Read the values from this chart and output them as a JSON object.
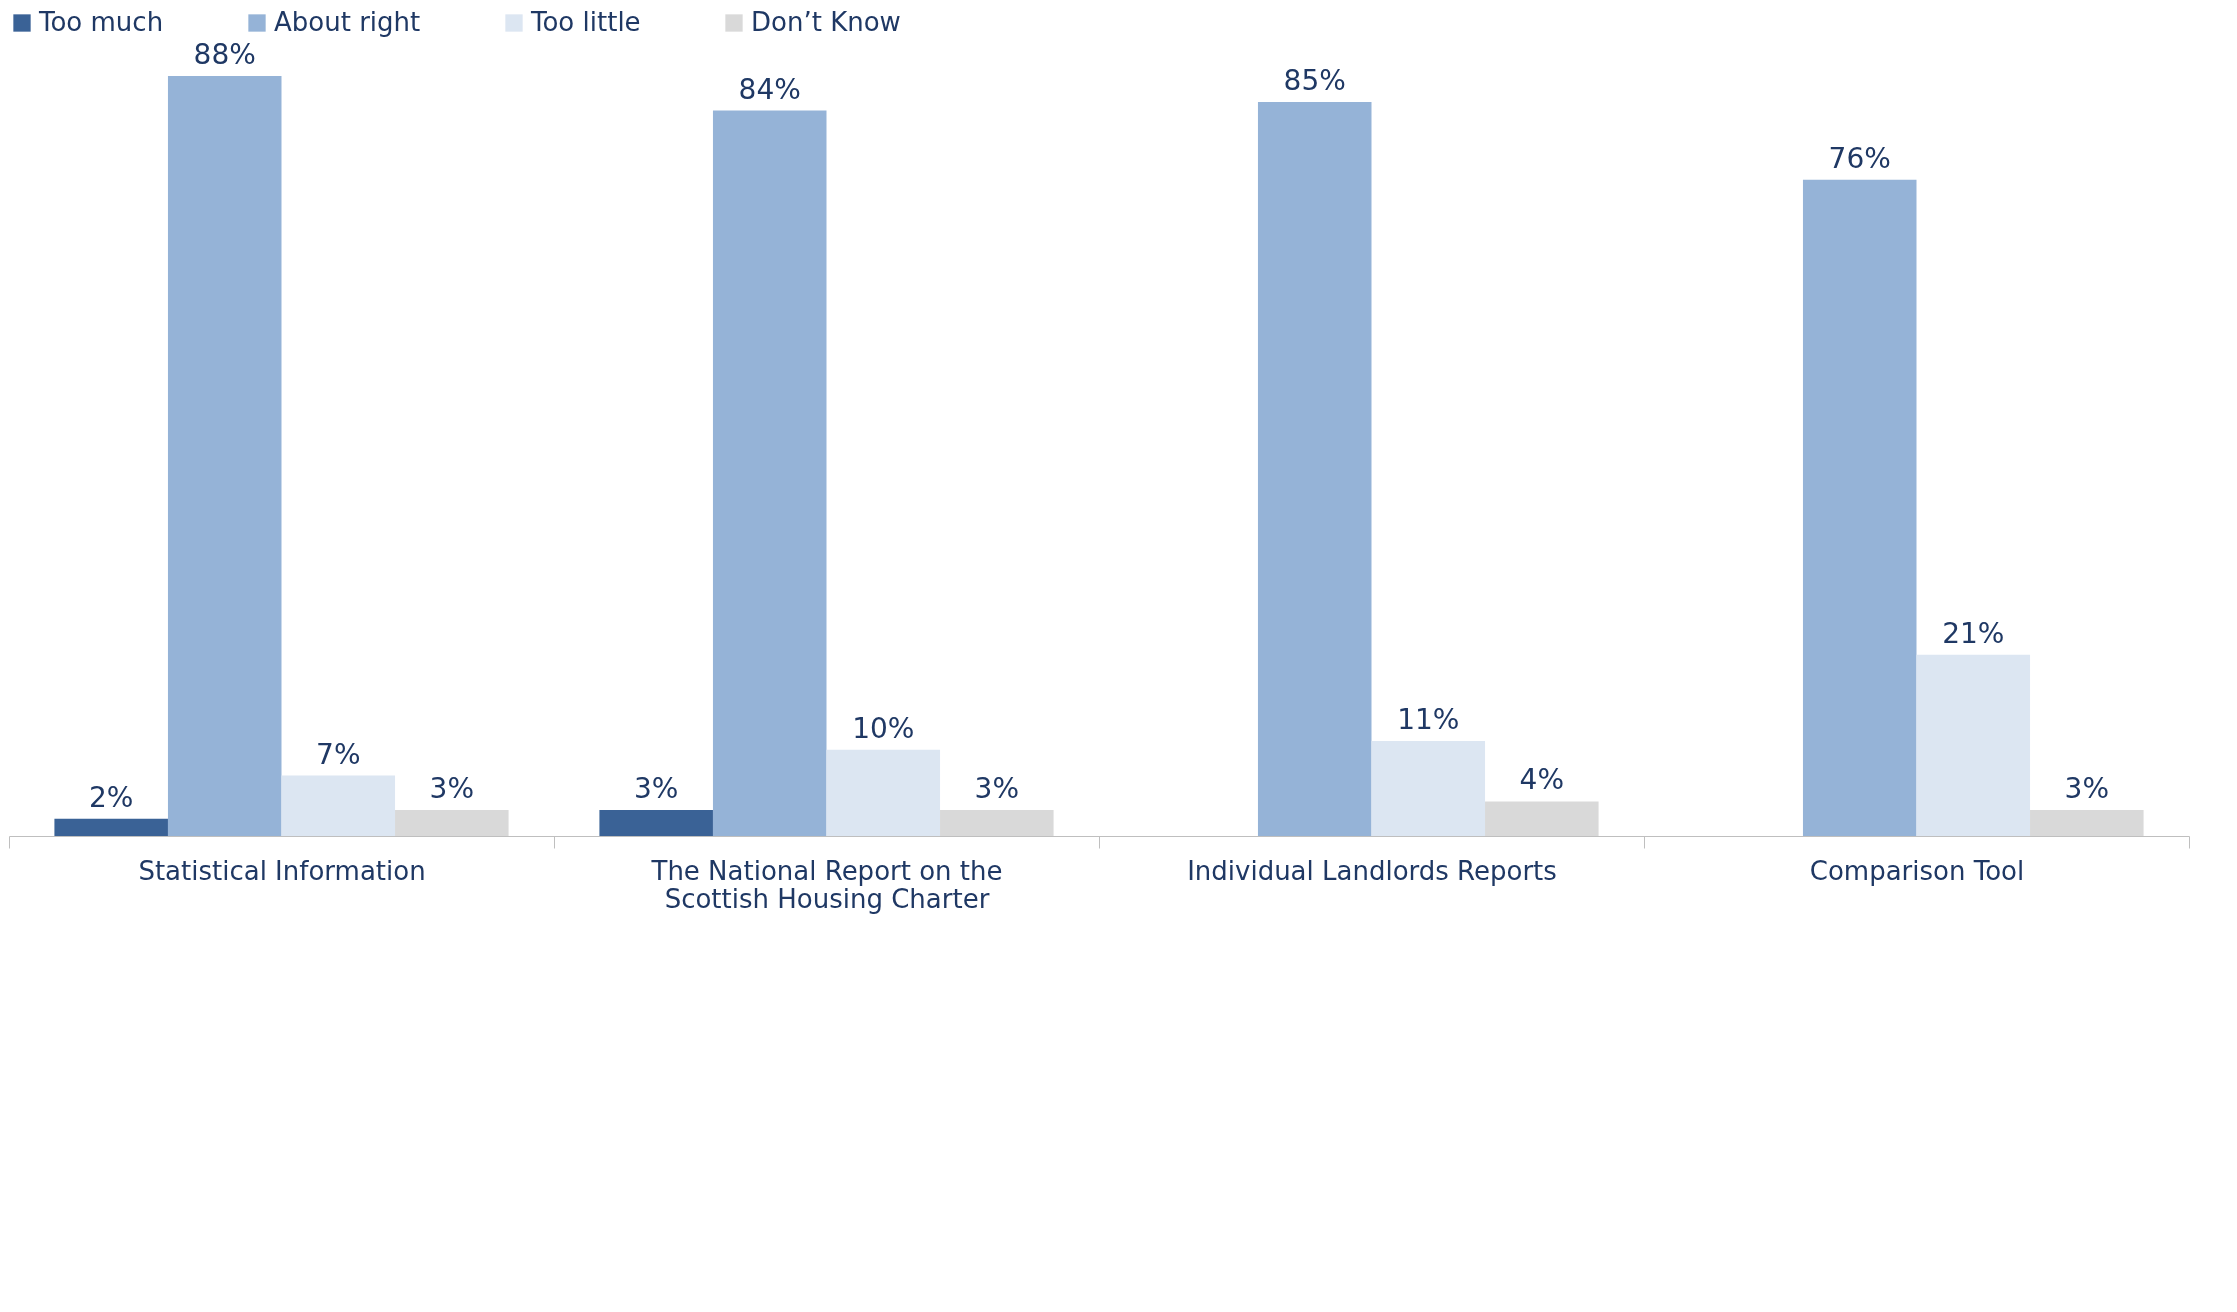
{
  "chart_data": {
    "type": "bar",
    "categories": [
      "Statistical Information",
      "The National Report on the Scottish Housing Charter",
      "Individual Landlords Reports",
      "Comparison Tool"
    ],
    "series": [
      {
        "name": "Too much",
        "color": "#3a6296",
        "values": [
          2,
          3,
          null,
          null
        ],
        "value_labels": [
          "2%",
          "3%",
          null,
          null
        ]
      },
      {
        "name": "About right",
        "color": "#95b3d7",
        "values": [
          88,
          84,
          85,
          76
        ],
        "value_labels": [
          "88%",
          "84%",
          "85%",
          "76%"
        ]
      },
      {
        "name": "Too little",
        "color": "#dce6f2",
        "values": [
          7,
          10,
          11,
          21
        ],
        "value_labels": [
          "7%",
          "10%",
          "11%",
          "21%"
        ]
      },
      {
        "name": "Don’t Know",
        "color": "#d9d9d9",
        "values": [
          3,
          3,
          4,
          3
        ],
        "value_labels": [
          "3%",
          "3%",
          "4%",
          "3%"
        ]
      }
    ],
    "legend": "top",
    "grid": false
  }
}
